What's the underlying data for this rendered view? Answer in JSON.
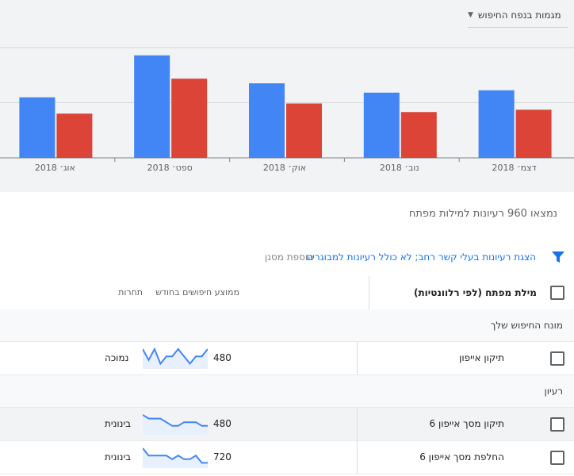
{
  "segment_dropdown": {
    "label": "מגמות בנפח החיפוש"
  },
  "colors": {
    "series_a": "#4285f4",
    "series_b": "#db4437",
    "link": "#1a73e8",
    "spark_fill": "#e8f0fe"
  },
  "chart_data": {
    "type": "bar",
    "categories": [
      "אוג׳ 2018",
      "ספט׳ 2018",
      "אוק׳ 2018",
      "נוב׳ 2018",
      "דצמ׳ 2018"
    ],
    "series": [
      {
        "values": [
          78,
          132,
          96,
          84,
          87
        ]
      },
      {
        "values": [
          57,
          102,
          70,
          59,
          62
        ]
      }
    ],
    "ylim": [
      0,
      142
    ],
    "grid": true,
    "legend": "none"
  },
  "results_count": "נמצאו 960 רעיונות למילות מפתח",
  "filter_bar": {
    "filter_icon": "funnel-icon",
    "broad_ideas_link": "הצגת רעיונות בעלי קשר רחב; לא כולל רעיונות למבוגרים",
    "add_filter": "הוספת מסנן"
  },
  "table": {
    "headers": {
      "keyword": "מילת מפתח (לפי רלוונטיות)",
      "avg_searches": "ממוצע חיפושים בחודש",
      "competition": "תחרות"
    },
    "sections": {
      "provided": "מונח החיפוש שלך",
      "ideas": "רעיון"
    },
    "provided_rows": [
      {
        "keyword": "תיקון אייפון",
        "avg": "480",
        "competition": "נמוכה",
        "trend": [
          5,
          2,
          5,
          1,
          3,
          3,
          5,
          3,
          1,
          3,
          3,
          5
        ]
      }
    ],
    "idea_rows": [
      {
        "keyword": "תיקון מסך אייפון 6",
        "avg": "480",
        "competition": "בינונית",
        "trend": [
          5,
          4,
          4,
          4,
          3,
          2,
          2,
          3,
          3,
          3,
          2,
          2
        ]
      },
      {
        "keyword": "החלפת מסך אייפון 6",
        "avg": "720",
        "competition": "בינונית",
        "trend": [
          5,
          3,
          3,
          3,
          3,
          2,
          3,
          2,
          2,
          3,
          1,
          1
        ]
      }
    ]
  }
}
